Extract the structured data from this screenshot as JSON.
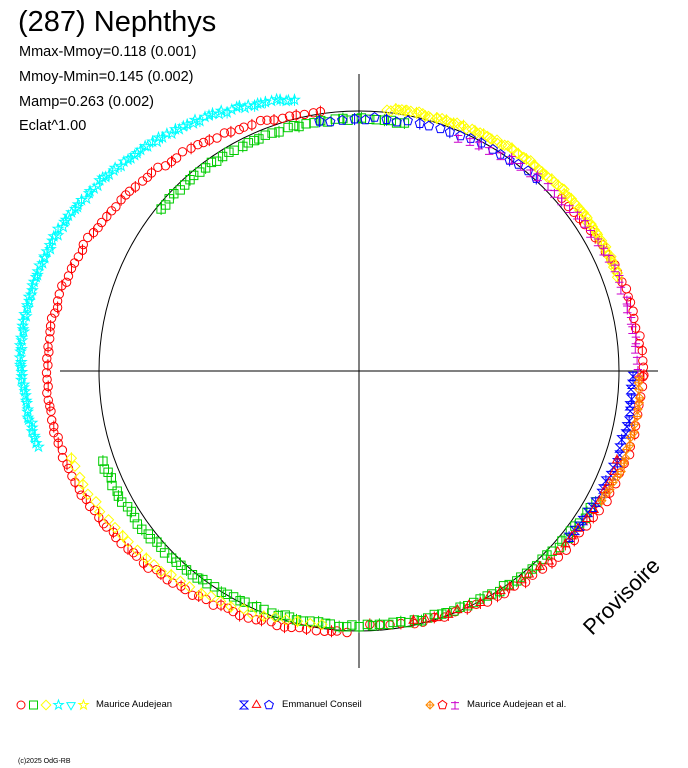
{
  "header": {
    "title": "(287) Nephthys",
    "stats": [
      "Mmax-Mmoy=0.118 (0.001)",
      "Mmoy-Mmin=0.145 (0.002)",
      "Mamp=0.263 (0.002)",
      "Eclat^1.00"
    ]
  },
  "stamp": "Provisoire",
  "legend": [
    {
      "label": "Maurice Audejean",
      "symbols": [
        {
          "shape": "circle",
          "color": "#ff0000"
        },
        {
          "shape": "square",
          "color": "#00cc00"
        },
        {
          "shape": "diamond",
          "color": "#ffff00"
        },
        {
          "shape": "star",
          "color": "#00ffff"
        },
        {
          "shape": "triangle-down",
          "color": "#00ffff"
        },
        {
          "shape": "star",
          "color": "#ffff00"
        }
      ]
    },
    {
      "label": "Emmanuel Conseil",
      "symbols": [
        {
          "shape": "hourglass",
          "color": "#0000ff"
        },
        {
          "shape": "triangle",
          "color": "#ff0000"
        },
        {
          "shape": "pentagon",
          "color": "#0000ff"
        }
      ]
    },
    {
      "label": "Maurice Audejean et al.",
      "symbols": [
        {
          "shape": "diamond-cross",
          "color": "#ff8800"
        },
        {
          "shape": "pentagon",
          "color": "#ff0000"
        },
        {
          "shape": "trident",
          "color": "#cc00cc"
        }
      ]
    }
  ],
  "copyright": "(c)2025 OdG-RB",
  "chart_data": {
    "type": "scatter",
    "title": "(287) Nephthys",
    "grid": false,
    "reference_circle": {
      "radius": 1.0
    },
    "axes": {
      "xlim": [
        -1.3,
        1.3
      ],
      "ylim": [
        -1.15,
        1.15
      ]
    },
    "series": [
      {
        "name": "Maurice Audejean",
        "shape": "circle",
        "color": "#ff0000",
        "arc": {
          "cx": -0.05,
          "cy": 0.0,
          "rx": 1.15,
          "ry": 1.0,
          "from_deg": 95,
          "to_deg": 270,
          "n": 120
        }
      },
      {
        "name": "Maurice Audejean",
        "shape": "circle",
        "color": "#ff0000",
        "arc": {
          "cx": 0.04,
          "cy": -0.02,
          "rx": 1.05,
          "ry": 0.96,
          "from_deg": 270,
          "to_deg": 360,
          "n": 40
        }
      },
      {
        "name": "Maurice Audejean",
        "shape": "circle",
        "color": "#ff0000",
        "arc": {
          "cx": 0.04,
          "cy": -0.02,
          "rx": 1.05,
          "ry": 0.96,
          "from_deg": 0,
          "to_deg": 45,
          "n": 25
        }
      },
      {
        "name": "Maurice Audejean",
        "shape": "square",
        "color": "#00cc00",
        "arc": {
          "cx": 0.0,
          "cy": -0.02,
          "rx": 1.05,
          "ry": 0.96,
          "from_deg": 200,
          "to_deg": 330,
          "n": 90
        }
      },
      {
        "name": "Maurice Audejean",
        "shape": "square",
        "color": "#00cc00",
        "arc": {
          "cx": 0.0,
          "cy": 0.0,
          "rx": 1.0,
          "ry": 0.97,
          "from_deg": 80,
          "to_deg": 140,
          "n": 40
        }
      },
      {
        "name": "Maurice Audejean",
        "shape": "diamond",
        "color": "#ffff00",
        "arc": {
          "cx": 0.02,
          "cy": 0.03,
          "rx": 1.04,
          "ry": 0.98,
          "from_deg": 20,
          "to_deg": 85,
          "n": 90
        }
      },
      {
        "name": "Maurice Audejean",
        "shape": "diamond",
        "color": "#ffff00",
        "arc": {
          "cx": -0.05,
          "cy": 0.0,
          "rx": 1.13,
          "ry": 0.98,
          "from_deg": 200,
          "to_deg": 265,
          "n": 30
        }
      },
      {
        "name": "Maurice Audejean",
        "shape": "star",
        "color": "#00ffff",
        "arc": {
          "cx": -0.15,
          "cy": 0.05,
          "rx": 1.15,
          "ry": 1.0,
          "from_deg": 95,
          "to_deg": 200,
          "n": 120
        }
      },
      {
        "name": "Emmanuel Conseil",
        "shape": "pentagon",
        "color": "#0000ff",
        "arc": {
          "cx": 0.03,
          "cy": 0.0,
          "rx": 1.02,
          "ry": 0.97,
          "from_deg": 50,
          "to_deg": 100,
          "n": 22
        }
      },
      {
        "name": "Emmanuel Conseil",
        "shape": "hourglass",
        "color": "#0000ff",
        "arc": {
          "cx": 0.03,
          "cy": -0.02,
          "rx": 1.02,
          "ry": 0.96,
          "from_deg": 320,
          "to_deg": 360,
          "n": 25
        }
      },
      {
        "name": "Emmanuel Conseil",
        "shape": "triangle",
        "color": "#ff0000",
        "arc": {
          "cx": 0.03,
          "cy": -0.02,
          "rx": 1.03,
          "ry": 0.96,
          "from_deg": 280,
          "to_deg": 340,
          "n": 25
        }
      },
      {
        "name": "Maurice Audejean et al.",
        "shape": "trident",
        "color": "#cc00cc",
        "arc": {
          "cx": 0.03,
          "cy": 0.0,
          "rx": 1.04,
          "ry": 0.96,
          "from_deg": 0,
          "to_deg": 70,
          "n": 30
        }
      },
      {
        "name": "Maurice Audejean et al.",
        "shape": "diamond-cross",
        "color": "#ff8800",
        "arc": {
          "cx": 0.03,
          "cy": -0.02,
          "rx": 1.05,
          "ry": 0.96,
          "from_deg": 330,
          "to_deg": 360,
          "n": 20
        }
      }
    ]
  }
}
